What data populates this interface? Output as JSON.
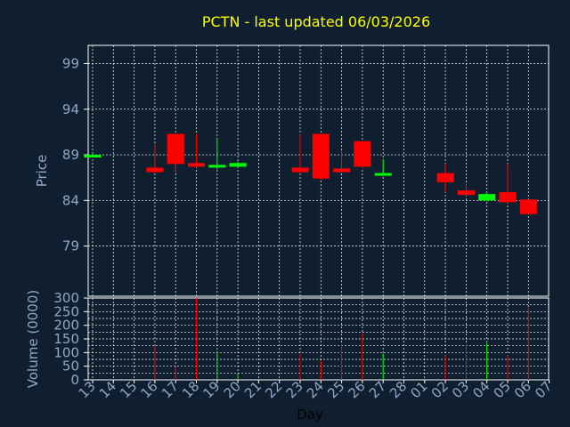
{
  "chart_data": {
    "type": "candlestick",
    "title": "PCTN - last updated 06/03/2026",
    "colors": {
      "background": "#0f1f2f",
      "plot_border": "#ffffff",
      "grid": "#ffffff",
      "up": "#00ff00",
      "down": "#ff0000",
      "title": "#ffff00",
      "axis_text": "#8fa8c8"
    },
    "grid": true,
    "x_tick_labels": [
      "13",
      "14",
      "15",
      "16",
      "17",
      "18",
      "19",
      "20",
      "21",
      "22",
      "23",
      "24",
      "25",
      "26",
      "27",
      "28",
      "01",
      "02",
      "03",
      "04",
      "05",
      "06",
      "07"
    ],
    "xlabel": "Day",
    "price_panel": {
      "ylabel": "Price",
      "ylim": [
        73.5,
        101
      ],
      "yticks": [
        79,
        84,
        89,
        94,
        99
      ]
    },
    "volume_panel": {
      "ylabel": "Volume (0000)",
      "ylim": [
        0,
        300
      ],
      "yticks": [
        0,
        25,
        50,
        75,
        100,
        125,
        150,
        175,
        200,
        225,
        250,
        275,
        300
      ],
      "ytick_labels": [
        "0",
        "50",
        "100",
        "150",
        "200",
        "250",
        "300"
      ]
    },
    "candles": [
      {
        "day": "13",
        "open": 89.0,
        "high": 89.2,
        "low": 88.8,
        "close": 89.0,
        "volume": 0
      },
      {
        "day": "16",
        "open": 87.6,
        "high": 90.2,
        "low": 87.0,
        "close": 87.1,
        "volume": 125
      },
      {
        "day": "17",
        "open": 91.3,
        "high": 91.3,
        "low": 87.0,
        "close": 88.0,
        "volume": 50
      },
      {
        "day": "18",
        "open": 88.1,
        "high": 91.3,
        "low": 87.6,
        "close": 87.7,
        "volume": 300
      },
      {
        "day": "19",
        "open": 87.7,
        "high": 90.8,
        "low": 87.4,
        "close": 87.9,
        "volume": 105
      },
      {
        "day": "20",
        "open": 87.7,
        "high": 88.3,
        "low": 87.6,
        "close": 88.1,
        "volume": 25
      },
      {
        "day": "23",
        "open": 87.6,
        "high": 91.2,
        "low": 87.0,
        "close": 87.1,
        "volume": 95
      },
      {
        "day": "24",
        "open": 91.3,
        "high": 91.3,
        "low": 86.2,
        "close": 86.4,
        "volume": 70
      },
      {
        "day": "25",
        "open": 87.5,
        "high": 89.5,
        "low": 87.0,
        "close": 87.1,
        "volume": 130
      },
      {
        "day": "26",
        "open": 90.5,
        "high": 90.5,
        "low": 87.5,
        "close": 87.7,
        "volume": 170
      },
      {
        "day": "27",
        "open": 86.9,
        "high": 88.5,
        "low": 86.8,
        "close": 87.0,
        "volume": 95
      },
      {
        "day": "02",
        "open": 87.0,
        "high": 88.0,
        "low": 84.9,
        "close": 86.0,
        "volume": 90
      },
      {
        "day": "03",
        "open": 85.1,
        "high": 86.0,
        "low": 84.5,
        "close": 84.6,
        "volume": 130
      },
      {
        "day": "04",
        "open": 84.0,
        "high": 84.9,
        "low": 83.9,
        "close": 84.7,
        "volume": 135
      },
      {
        "day": "05",
        "open": 84.9,
        "high": 88.0,
        "low": 83.7,
        "close": 83.8,
        "volume": 90
      },
      {
        "day": "06",
        "open": 84.1,
        "high": 84.1,
        "low": 82.5,
        "close": 82.5,
        "volume": 265
      }
    ]
  }
}
